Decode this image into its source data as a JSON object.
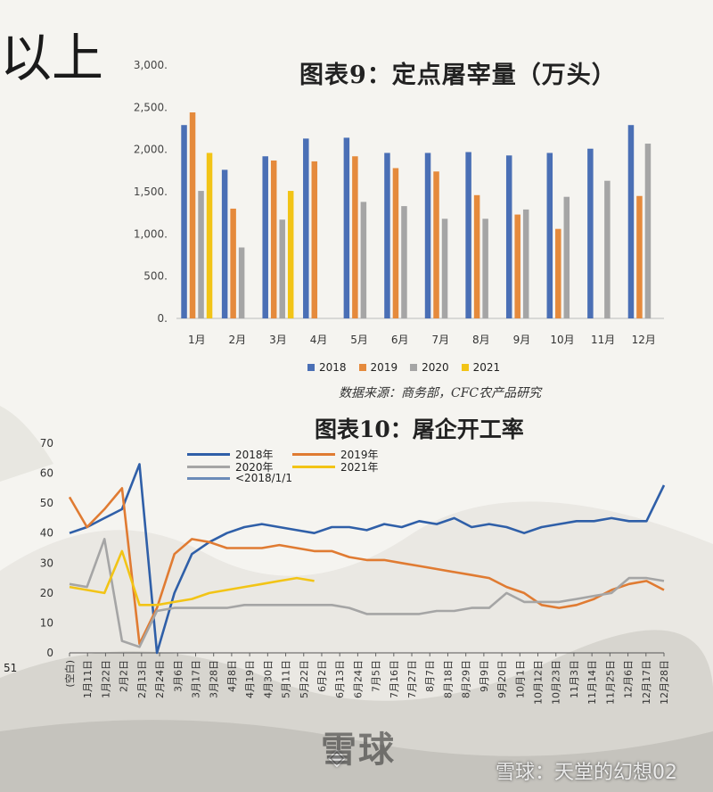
{
  "fragment_left": "以上",
  "fragment_51": "51",
  "watermark": {
    "main": "雪球",
    "footer": "雪球：天堂的幻想02"
  },
  "chart_data": [
    {
      "type": "bar",
      "title": "图表9：定点屠宰量（万头）",
      "source": "数据来源：商务部，CFC农产品研究",
      "categories": [
        "1月",
        "2月",
        "3月",
        "4月",
        "5月",
        "6月",
        "7月",
        "8月",
        "9月",
        "10月",
        "11月",
        "12月"
      ],
      "ylim": [
        0,
        3000
      ],
      "yticks": [
        "0.",
        "500.",
        "1,000.",
        "1,500.",
        "2,000.",
        "2,500.",
        "3,000."
      ],
      "ytick_values": [
        0,
        500,
        1000,
        1500,
        2000,
        2500,
        3000
      ],
      "legend_position": "bottom",
      "series": [
        {
          "name": "2018",
          "color": "#4a6fb5",
          "values": [
            2290,
            1760,
            1920,
            2130,
            2140,
            1960,
            1960,
            1970,
            1930,
            1960,
            2010,
            2290
          ]
        },
        {
          "name": "2019",
          "color": "#e58a3c",
          "values": [
            2440,
            1300,
            1870,
            1860,
            1920,
            1780,
            1740,
            1460,
            1230,
            1060,
            null,
            1450
          ]
        },
        {
          "name": "2020",
          "color": "#a5a5a5",
          "values": [
            1510,
            840,
            1170,
            null,
            1380,
            1330,
            1180,
            1180,
            1290,
            1440,
            1630,
            2070
          ]
        },
        {
          "name": "2021",
          "color": "#f2c416",
          "values": [
            1960,
            null,
            1510,
            null,
            null,
            null,
            null,
            null,
            null,
            null,
            null,
            null
          ]
        }
      ]
    },
    {
      "type": "line",
      "title": "图表10：屠企开工率",
      "ylim": [
        0,
        70
      ],
      "yticks": [
        "0",
        "10",
        "20",
        "30",
        "40",
        "50",
        "60",
        "70"
      ],
      "ytick_values": [
        0,
        10,
        20,
        30,
        40,
        50,
        60,
        70
      ],
      "xtick_labels": [
        "(空白)",
        "1月11日",
        "1月22日",
        "2月2日",
        "2月13日",
        "2月24日",
        "3月6日",
        "3月17日",
        "3月28日",
        "4月8日",
        "4月19日",
        "4月30日",
        "5月11日",
        "5月22日",
        "6月2日",
        "6月13日",
        "6月24日",
        "7月5日",
        "7月16日",
        "7月27日",
        "8月7日",
        "8月18日",
        "8月29日",
        "9月9日",
        "9月20日",
        "10月1日",
        "10月12日",
        "10月23日",
        "11月3日",
        "11月14日",
        "11月25日",
        "12月6日",
        "12月17日",
        "12月28日"
      ],
      "legend_position": "top",
      "series": [
        {
          "name": "2018年",
          "color": "#2f5fa8",
          "values": [
            40,
            42,
            45,
            48,
            63,
            0,
            20,
            33,
            37,
            40,
            42,
            43,
            42,
            41,
            40,
            42,
            42,
            41,
            43,
            42,
            44,
            43,
            45,
            42,
            43,
            42,
            40,
            42,
            43,
            44,
            44,
            45,
            44,
            44,
            56
          ]
        },
        {
          "name": "2019年",
          "color": "#e07b32",
          "values": [
            52,
            42,
            48,
            55,
            3,
            15,
            33,
            38,
            37,
            35,
            35,
            35,
            36,
            35,
            34,
            34,
            32,
            31,
            31,
            30,
            29,
            28,
            27,
            26,
            25,
            22,
            20,
            16,
            15,
            16,
            18,
            21,
            23,
            24,
            21
          ]
        },
        {
          "name": "2020年",
          "color": "#a5a5a5",
          "values": [
            23,
            22,
            38,
            4,
            2,
            14,
            15,
            15,
            15,
            15,
            16,
            16,
            16,
            16,
            16,
            16,
            15,
            13,
            13,
            13,
            13,
            14,
            14,
            15,
            15,
            20,
            17,
            17,
            17,
            18,
            19,
            20,
            25,
            25,
            24
          ]
        },
        {
          "name": "2021年",
          "color": "#f2c416",
          "values": [
            22,
            21,
            20,
            34,
            16,
            16,
            17,
            18,
            20,
            21,
            22,
            23,
            24,
            25,
            24,
            null,
            null,
            null,
            null,
            null,
            null,
            null,
            null,
            null,
            null,
            null,
            null,
            null,
            null,
            null,
            null,
            null,
            null,
            null,
            null
          ]
        },
        {
          "name": "<2018/1/1",
          "color": "#6b8bb8",
          "values": []
        }
      ]
    }
  ]
}
